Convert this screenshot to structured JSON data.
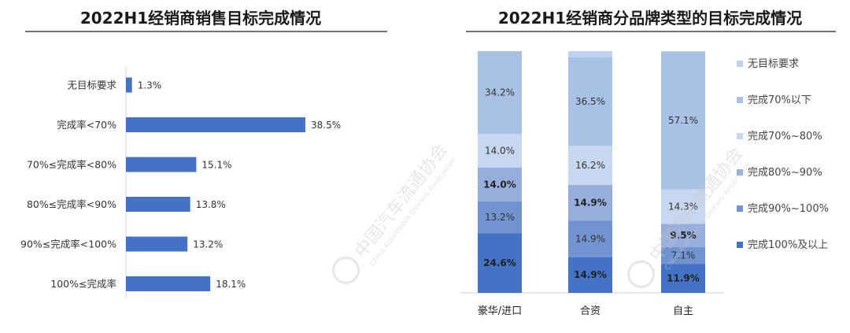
{
  "chart_data": [
    {
      "type": "bar",
      "orientation": "horizontal",
      "title": "2022H1经销商销售目标完成情况",
      "categories": [
        "无目标要求",
        "完成率<70%",
        "70%≤完成率<80%",
        "80%≤完成率<90%",
        "90%≤完成率<100%",
        "100%≤完成率"
      ],
      "values": [
        1.3,
        38.5,
        15.1,
        13.8,
        13.2,
        18.1
      ],
      "value_labels": [
        "1.3%",
        "38.5%",
        "15.1%",
        "13.8%",
        "13.2%",
        "18.1%"
      ],
      "unit": "%",
      "xlim": [
        0,
        40
      ],
      "grid": false,
      "color": "#4472C4"
    },
    {
      "type": "bar",
      "stacked": true,
      "title": "2022H1经销商分品牌类型的目标完成情况",
      "categories": [
        "豪华/进口",
        "合资",
        "自主"
      ],
      "ylim": [
        0,
        100
      ],
      "grid": false,
      "legend_position": "right",
      "series": [
        {
          "name": "完成100%及以上",
          "values": [
            24.6,
            14.9,
            11.9
          ],
          "labels": [
            "24.6%",
            "14.9%",
            "11.9%"
          ],
          "bold": true,
          "color": "#4472C4"
        },
        {
          "name": "完成90%~100%",
          "values": [
            13.2,
            14.9,
            7.1
          ],
          "labels": [
            "13.2%",
            "14.9%",
            "7.1%"
          ],
          "bold": false,
          "color": "#7193D0"
        },
        {
          "name": "完成80%~90%",
          "values": [
            14.0,
            14.9,
            9.5
          ],
          "labels": [
            "14.0%",
            "14.9%",
            "9.5%"
          ],
          "bold": true,
          "color": "#97AEDD"
        },
        {
          "name": "完成70%~80%",
          "values": [
            14.0,
            16.2,
            14.3
          ],
          "labels": [
            "14.0%",
            "16.2%",
            "14.3%"
          ],
          "bold": false,
          "color": "#C7D7F0"
        },
        {
          "name": "完成70%以下",
          "values": [
            34.2,
            36.5,
            57.1
          ],
          "labels": [
            "34.2%",
            "36.5%",
            "57.1%"
          ],
          "bold": false,
          "color": "#A9C1E4"
        },
        {
          "name": "无目标要求",
          "values": [
            0.0,
            2.6,
            0.1
          ],
          "labels": [
            "",
            "",
            ""
          ],
          "bold": false,
          "color": "#BFD1EC"
        }
      ],
      "legend_order": [
        "无目标要求",
        "完成70%以下",
        "完成70%~80%",
        "完成80%~90%",
        "完成90%~100%",
        "完成100%及以上"
      ]
    }
  ],
  "watermark": {
    "text": "中国汽车流通协会",
    "subtext": "China Automobile Dealers Association"
  }
}
